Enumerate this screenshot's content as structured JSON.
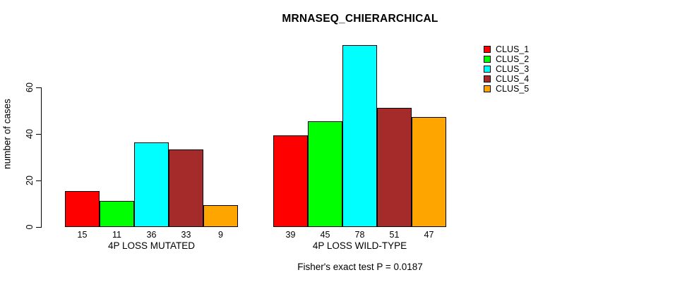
{
  "chart_data": {
    "type": "bar",
    "title": "MRNASEQ_CHIERARCHICAL",
    "ylabel": "number of cases",
    "xlabel": "",
    "categories": [
      "4P LOSS MUTATED",
      "4P LOSS WILD-TYPE"
    ],
    "series": [
      {
        "name": "CLUS_1",
        "color": "#FF0000",
        "values": [
          15,
          39
        ]
      },
      {
        "name": "CLUS_2",
        "color": "#00FF00",
        "values": [
          11,
          45
        ]
      },
      {
        "name": "CLUS_3",
        "color": "#00FFFF",
        "values": [
          36,
          78
        ]
      },
      {
        "name": "CLUS_4",
        "color": "#A52A2A",
        "values": [
          33,
          51
        ]
      },
      {
        "name": "CLUS_5",
        "color": "#FFA500",
        "values": [
          9,
          47
        ]
      }
    ],
    "yticks": [
      0,
      20,
      40,
      60
    ],
    "ylim": [
      0,
      80
    ],
    "grid": false,
    "bar_borders": "#000000",
    "bar_value_labels_shown": true,
    "legend_position": "top-right",
    "annotation": "Fisher's exact test P = 0.0187"
  }
}
